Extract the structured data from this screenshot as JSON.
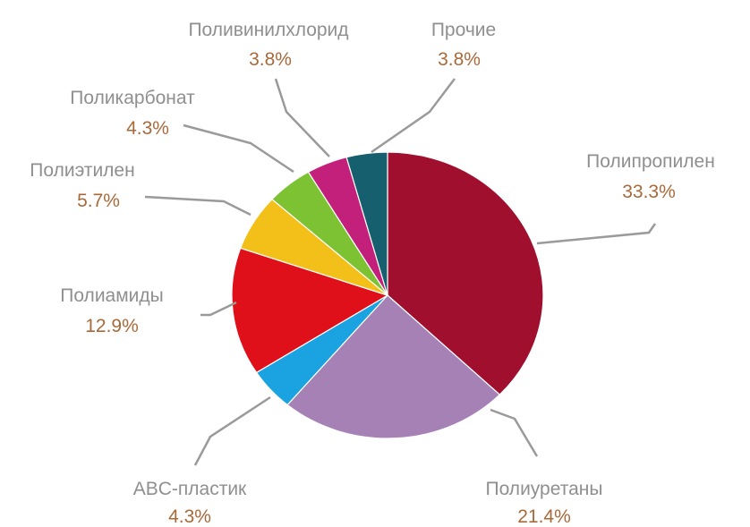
{
  "chart_data": {
    "type": "pie",
    "title": "",
    "legend": "none",
    "slices": [
      {
        "label": "Полипропилен",
        "value_text": "33.3%",
        "value": 33.3,
        "color": "#a0102e"
      },
      {
        "label": "Полиуретаны",
        "value_text": "21.4%",
        "value": 21.4,
        "color": "#a681b5"
      },
      {
        "label": "ABC-пластик",
        "value_text": "4.3%",
        "value": 4.3,
        "color": "#1aa3e0"
      },
      {
        "label": "Полиамиды",
        "value_text": "12.9%",
        "value": 12.9,
        "color": "#e0101a"
      },
      {
        "label": "Полиэтилен",
        "value_text": "5.7%",
        "value": 5.7,
        "color": "#f2c018"
      },
      {
        "label": "Поликарбонат",
        "value_text": "4.3%",
        "value": 4.3,
        "color": "#7cc232"
      },
      {
        "label": "Поливинилхлорид",
        "value_text": "3.8%",
        "value": 3.8,
        "color": "#c2207a"
      },
      {
        "label": "Прочие",
        "value_text": "3.8%",
        "value": 3.8,
        "color": "#155f6e"
      }
    ]
  }
}
